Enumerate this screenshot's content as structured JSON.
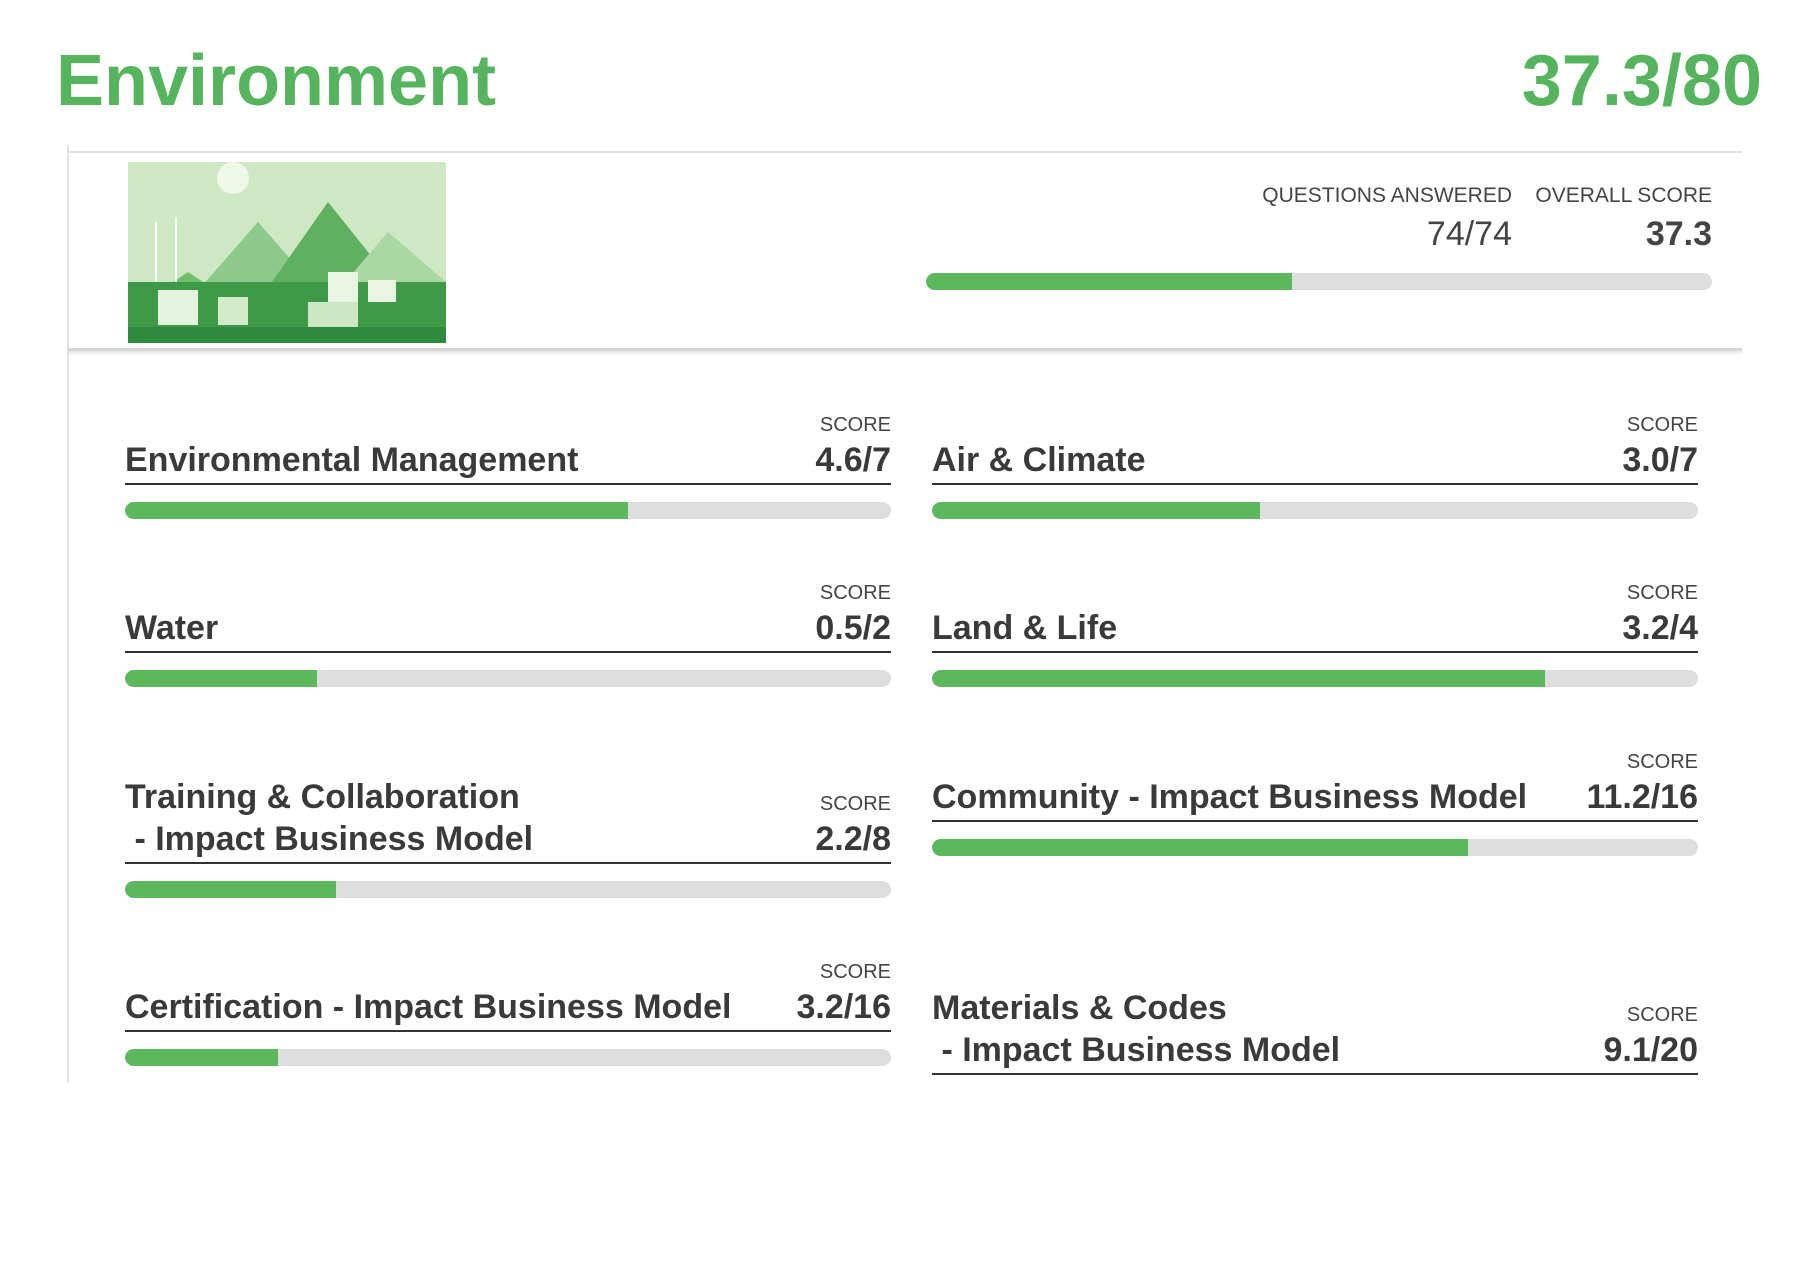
{
  "header": {
    "title": "Environment",
    "score": "37.3/80"
  },
  "summary": {
    "questions_answered": {
      "label": "QUESTIONS ANSWERED",
      "value": "74/74"
    },
    "overall_score": {
      "label": "OVERALL SCORE",
      "value": "37.3"
    },
    "progress": {
      "value": 37.3,
      "max": 80
    }
  },
  "items": [
    {
      "name": "Environmental Management",
      "score_label": "SCORE",
      "label": "4.6/7",
      "score": 4.6,
      "max": 7
    },
    {
      "name": "Air & Climate",
      "score_label": "SCORE",
      "label": "3.0/7",
      "score": 3.0,
      "max": 7
    },
    {
      "name": "Water",
      "score_label": "SCORE",
      "label": "0.5/2",
      "score": 0.5,
      "max": 2
    },
    {
      "name": "Land & Life",
      "score_label": "SCORE",
      "label": "3.2/4",
      "score": 3.2,
      "max": 4
    },
    {
      "name": "Training & Collaboration\n - Impact Business Model",
      "score_label": "SCORE",
      "label": "2.2/8",
      "score": 2.2,
      "max": 8
    },
    {
      "name": "Community - Impact Business Model",
      "score_label": "SCORE",
      "label": "11.2/16",
      "score": 11.2,
      "max": 16
    },
    {
      "name": "Certification - Impact Business Model",
      "score_label": "SCORE",
      "label": "3.2/16",
      "score": 3.2,
      "max": 16
    },
    {
      "name": "Materials & Codes\n - Impact Business Model",
      "score_label": "SCORE",
      "label": "9.1/20"
    }
  ]
}
